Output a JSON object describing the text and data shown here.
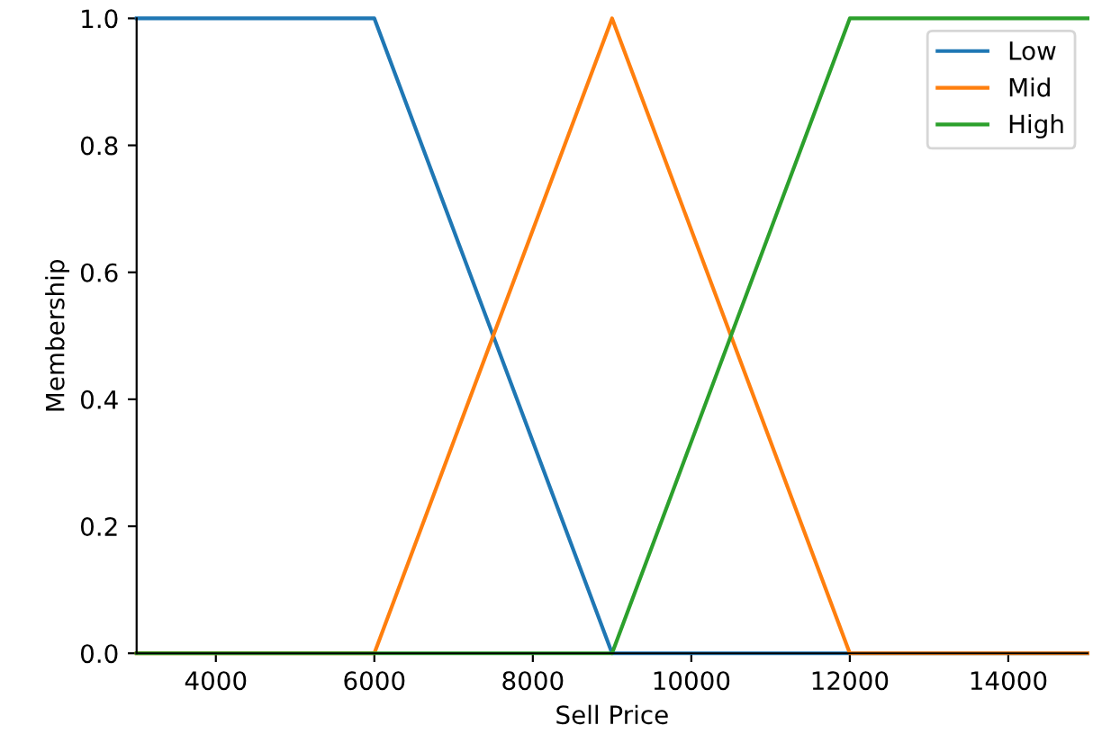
{
  "chart_data": {
    "type": "line",
    "xlabel": "Sell Price",
    "ylabel": "Membership",
    "xlim": [
      3000,
      15000
    ],
    "ylim": [
      0,
      1
    ],
    "xticks": [
      4000,
      6000,
      8000,
      10000,
      12000,
      14000
    ],
    "yticks": [
      {
        "value": 0,
        "label": "0.0"
      },
      {
        "value": 0.2,
        "label": "0.2"
      },
      {
        "value": 0.4,
        "label": "0.4"
      },
      {
        "value": 0.6,
        "label": "0.6"
      },
      {
        "value": 0.8,
        "label": "0.8"
      },
      {
        "value": 1,
        "label": "1.0"
      }
    ],
    "grid": false,
    "legend": "top right",
    "marker": "none",
    "line_style": "solid",
    "series": [
      {
        "name": "Low",
        "color": "#1f77b4",
        "x": [
          3000,
          6000,
          9000,
          15000
        ],
        "values": [
          1,
          1,
          0,
          0
        ]
      },
      {
        "name": "Mid",
        "color": "#ff7f0e",
        "x": [
          3000,
          6000,
          9000,
          12000,
          15000
        ],
        "values": [
          0,
          0,
          1,
          0,
          0
        ]
      },
      {
        "name": "High",
        "color": "#2ca02c",
        "x": [
          3000,
          9000,
          12000,
          15000
        ],
        "values": [
          0,
          0,
          1,
          1
        ]
      }
    ]
  }
}
